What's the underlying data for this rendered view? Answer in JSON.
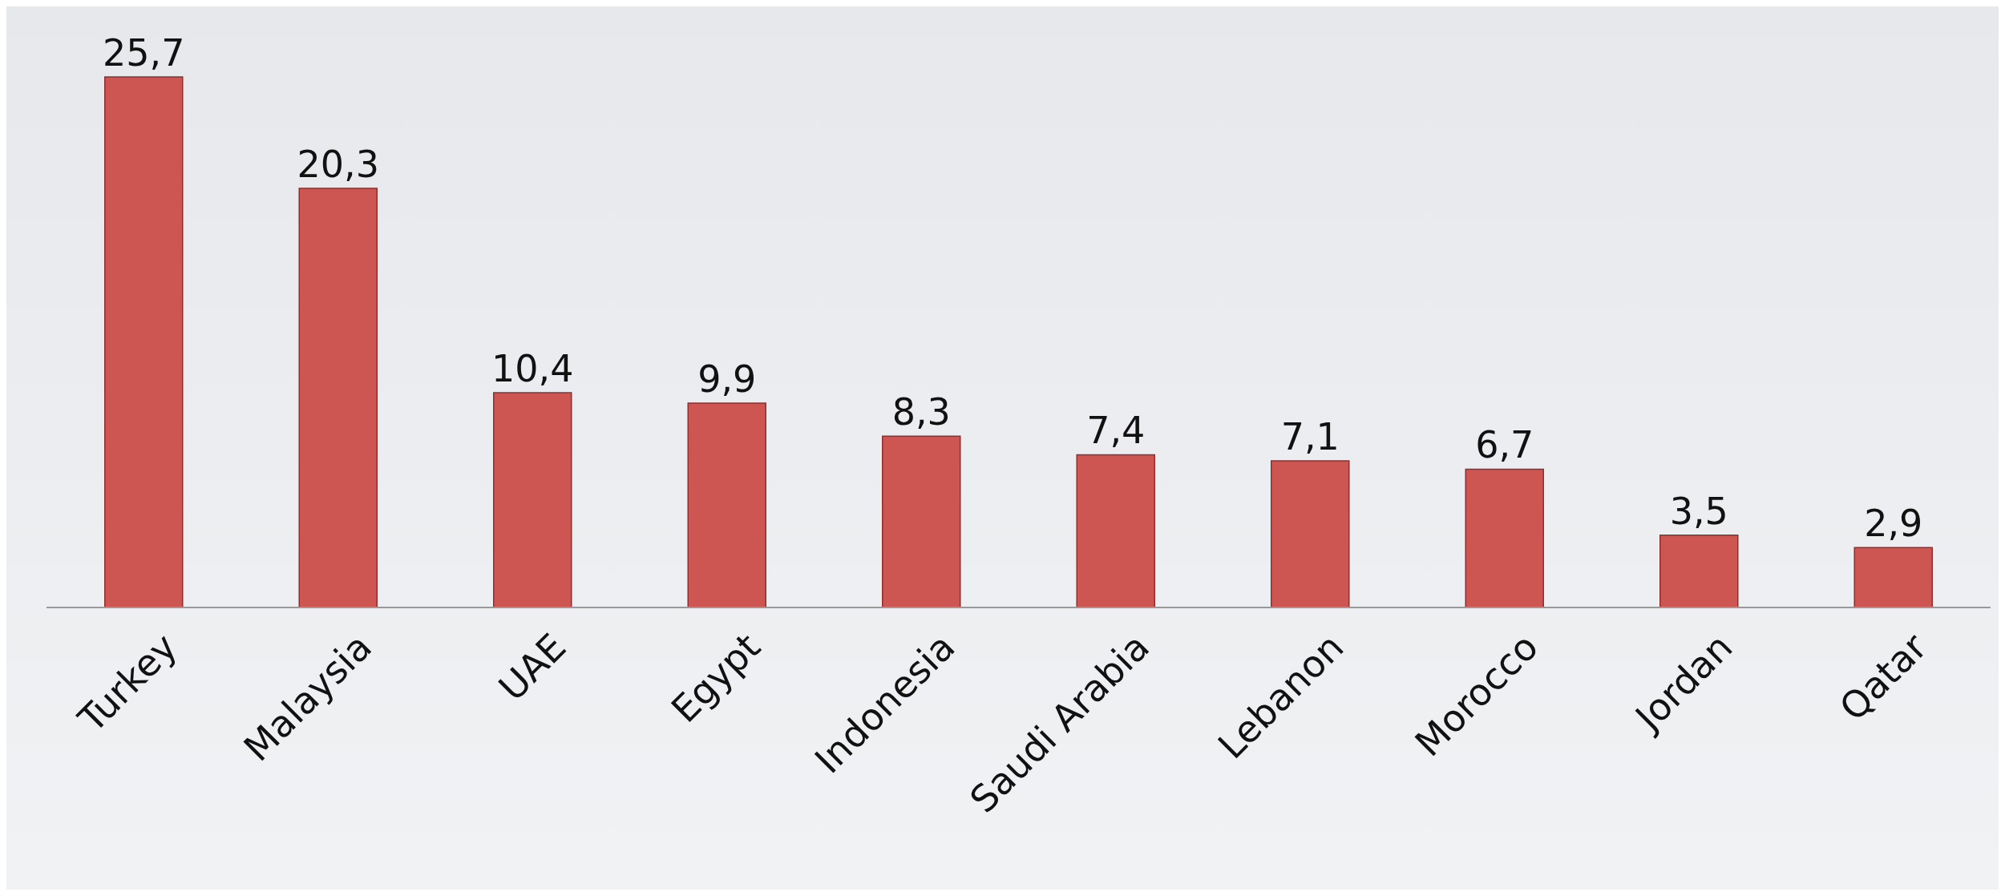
{
  "chart_data": {
    "type": "bar",
    "categories": [
      "Turkey",
      "Malaysia",
      "UAE",
      "Egypt",
      "Indonesia",
      "Saudi Arabia",
      "Lebanon",
      "Morocco",
      "Jordan",
      "Qatar"
    ],
    "values": [
      25.7,
      20.3,
      10.4,
      9.9,
      8.3,
      7.4,
      7.1,
      6.7,
      3.5,
      2.9
    ],
    "value_labels": [
      "25,7",
      "20,3",
      "10,4",
      "9,9",
      "8,3",
      "7,4",
      "7,1",
      "6,7",
      "3,5",
      "2,9"
    ],
    "color": "#cd5653",
    "grid": false,
    "legend": false
  }
}
